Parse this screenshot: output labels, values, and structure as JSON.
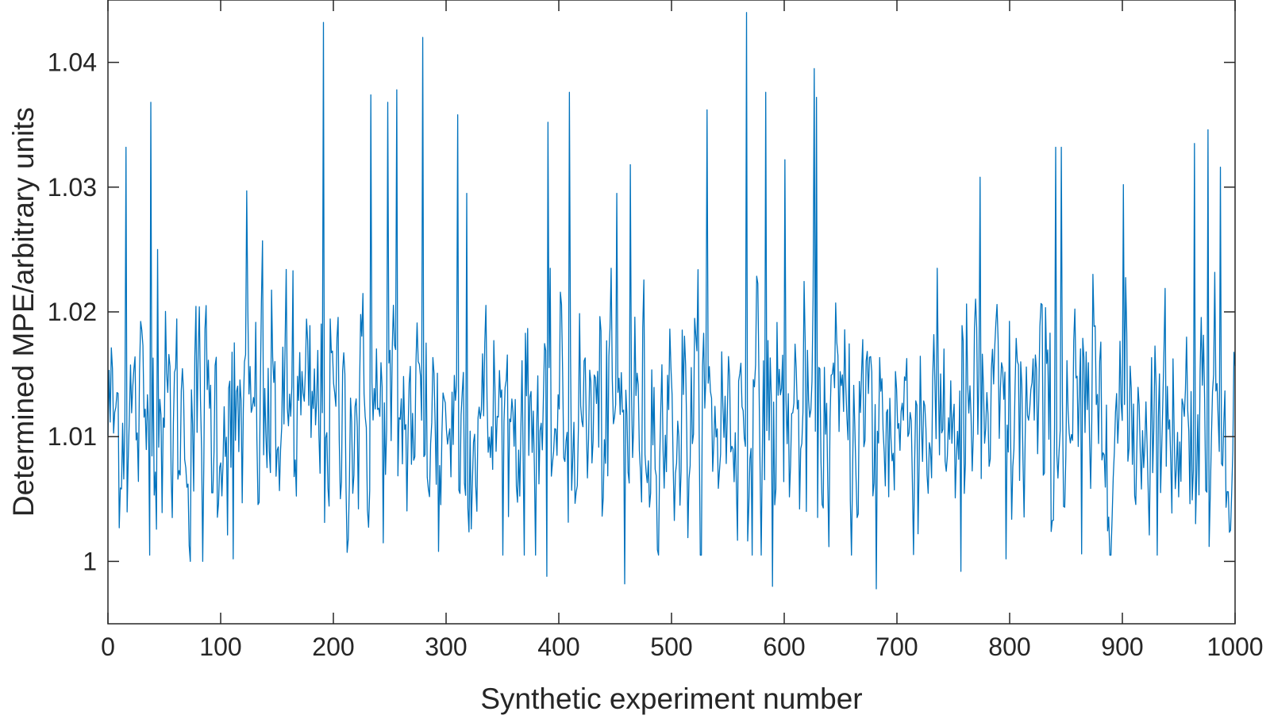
{
  "chart_data": {
    "type": "line",
    "title": "",
    "xlabel": "Synthetic experiment number",
    "ylabel": "Determined MPE/arbitrary units",
    "xlim": [
      0,
      1000
    ],
    "ylim": [
      0.995,
      1.045
    ],
    "xticks": [
      0,
      100,
      200,
      300,
      400,
      500,
      600,
      700,
      800,
      900,
      1000
    ],
    "xtick_labels": [
      "0",
      "100",
      "200",
      "300",
      "400",
      "500",
      "600",
      "700",
      "800",
      "900",
      "1000"
    ],
    "yticks": [
      1.0,
      1.01,
      1.02,
      1.03,
      1.04
    ],
    "ytick_labels": [
      "1",
      "1.01",
      "1.02",
      "1.03",
      "1.04"
    ],
    "grid": false,
    "line_color": "#0072BD",
    "series": [
      {
        "n_points": 1000,
        "baseline": 1.0115,
        "noise_sd": 0.0045,
        "peaks": [
          {
            "x": 16,
            "y": 1.0332
          },
          {
            "x": 38,
            "y": 1.0368
          },
          {
            "x": 44,
            "y": 1.025
          },
          {
            "x": 73,
            "y": 1.0
          },
          {
            "x": 84,
            "y": 1.0
          },
          {
            "x": 111,
            "y": 1.0002
          },
          {
            "x": 123,
            "y": 1.0297
          },
          {
            "x": 137,
            "y": 1.0257
          },
          {
            "x": 164,
            "y": 1.0233
          },
          {
            "x": 191,
            "y": 1.0432
          },
          {
            "x": 233,
            "y": 1.0374
          },
          {
            "x": 248,
            "y": 1.0368
          },
          {
            "x": 256,
            "y": 1.0378
          },
          {
            "x": 279,
            "y": 1.042
          },
          {
            "x": 282,
            "y": 1.0175
          },
          {
            "x": 293,
            "y": 1.0008
          },
          {
            "x": 310,
            "y": 1.0358
          },
          {
            "x": 318,
            "y": 1.0295
          },
          {
            "x": 322,
            "y": 1.0026
          },
          {
            "x": 389,
            "y": 0.9988
          },
          {
            "x": 390,
            "y": 1.0352
          },
          {
            "x": 409,
            "y": 1.0376
          },
          {
            "x": 451,
            "y": 1.0295
          },
          {
            "x": 458,
            "y": 0.9982
          },
          {
            "x": 463,
            "y": 1.0318
          },
          {
            "x": 531,
            "y": 1.0362
          },
          {
            "x": 566,
            "y": 1.044
          },
          {
            "x": 589,
            "y": 0.998
          },
          {
            "x": 583,
            "y": 1.0376
          },
          {
            "x": 600,
            "y": 1.0322
          },
          {
            "x": 626,
            "y": 1.0395
          },
          {
            "x": 628,
            "y": 1.0372
          },
          {
            "x": 681,
            "y": 0.9978
          },
          {
            "x": 756,
            "y": 0.9992
          },
          {
            "x": 773,
            "y": 1.0308
          },
          {
            "x": 796,
            "y": 1.0002
          },
          {
            "x": 840,
            "y": 1.0332
          },
          {
            "x": 845,
            "y": 1.0332
          },
          {
            "x": 863,
            "y": 1.0006
          },
          {
            "x": 900,
            "y": 1.0302
          },
          {
            "x": 963,
            "y": 1.0335
          },
          {
            "x": 975,
            "y": 1.0346
          },
          {
            "x": 986,
            "y": 1.0316
          },
          {
            "x": 995,
            "y": 1.0025
          }
        ]
      }
    ]
  }
}
